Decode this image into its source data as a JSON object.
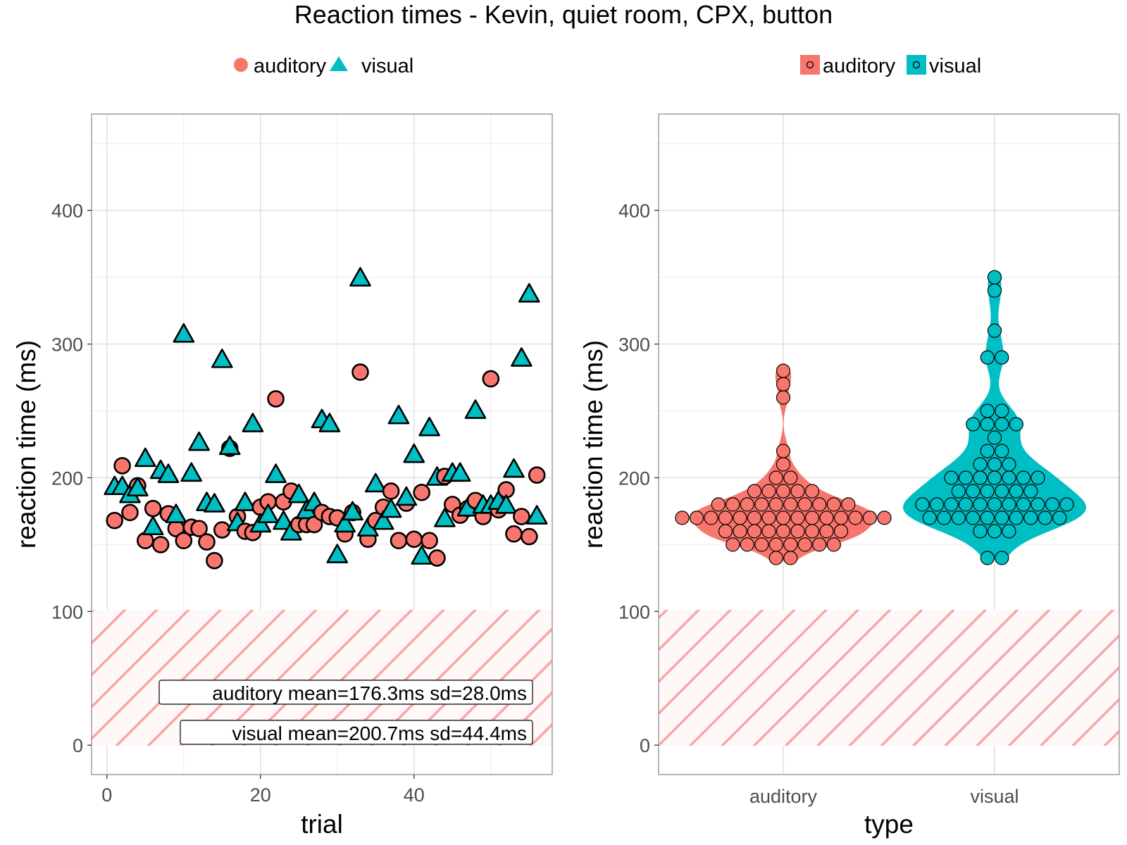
{
  "title": "Reaction times - Kevin, quiet room, CPX, button",
  "colors": {
    "auditory": "#F8766D",
    "visual": "#00BFC4",
    "hatch": "#F8766D"
  },
  "chart_data": [
    {
      "type": "scatter",
      "xlabel": "trial",
      "ylabel": "reaction time (ms)",
      "xlim": [
        -2,
        58
      ],
      "ylim": [
        -22,
        472
      ],
      "x_ticks": [
        0,
        20,
        40
      ],
      "y_ticks": [
        0,
        100,
        200,
        300,
        400
      ],
      "grid": true,
      "legend_position": "top",
      "legend": [
        {
          "label": "auditory",
          "shape": "circle"
        },
        {
          "label": "visual",
          "shape": "triangle"
        }
      ],
      "shaded_region": {
        "y_from": 0,
        "y_to": 100,
        "pattern": "diagonal-hatch"
      },
      "annotations": [
        "auditory mean=176.3ms sd=28.0ms",
        "visual mean=200.7ms sd=44.4ms"
      ],
      "series": [
        {
          "name": "auditory",
          "shape": "circle",
          "points": [
            [
              1,
              168
            ],
            [
              2,
              209
            ],
            [
              3,
              174
            ],
            [
              4,
              194
            ],
            [
              5,
              153
            ],
            [
              6,
              177
            ],
            [
              7,
              150
            ],
            [
              8,
              173
            ],
            [
              9,
              162
            ],
            [
              10,
              153
            ],
            [
              11,
              163
            ],
            [
              12,
              162
            ],
            [
              13,
              152
            ],
            [
              14,
              138
            ],
            [
              15,
              161
            ],
            [
              16,
              222
            ],
            [
              17,
              171
            ],
            [
              18,
              160
            ],
            [
              19,
              159
            ],
            [
              20,
              178
            ],
            [
              21,
              182
            ],
            [
              22,
              259
            ],
            [
              23,
              182
            ],
            [
              24,
              190
            ],
            [
              25,
              165
            ],
            [
              26,
              165
            ],
            [
              27,
              165
            ],
            [
              28,
              174
            ],
            [
              29,
              171
            ],
            [
              30,
              170
            ],
            [
              31,
              158
            ],
            [
              32,
              174
            ],
            [
              33,
              279
            ],
            [
              34,
              154
            ],
            [
              35,
              168
            ],
            [
              36,
              178
            ],
            [
              37,
              190
            ],
            [
              38,
              153
            ],
            [
              39,
              181
            ],
            [
              40,
              154
            ],
            [
              41,
              189
            ],
            [
              42,
              153
            ],
            [
              43,
              140
            ],
            [
              44,
              201
            ],
            [
              45,
              180
            ],
            [
              46,
              172
            ],
            [
              47,
              177
            ],
            [
              48,
              183
            ],
            [
              49,
              171
            ],
            [
              50,
              274
            ],
            [
              51,
              176
            ],
            [
              52,
              191
            ],
            [
              53,
              158
            ],
            [
              54,
              171
            ],
            [
              55,
              156
            ],
            [
              56,
              202
            ]
          ]
        },
        {
          "name": "visual",
          "shape": "triangle",
          "points": [
            [
              1,
              193
            ],
            [
              2,
              193
            ],
            [
              3,
              187
            ],
            [
              4,
              192
            ],
            [
              5,
              214
            ],
            [
              6,
              163
            ],
            [
              7,
              205
            ],
            [
              8,
              202
            ],
            [
              9,
              172
            ],
            [
              10,
              307
            ],
            [
              11,
              203
            ],
            [
              12,
              226
            ],
            [
              13,
              181
            ],
            [
              14,
              180
            ],
            [
              15,
              288
            ],
            [
              16,
              223
            ],
            [
              17,
              166
            ],
            [
              18,
              181
            ],
            [
              19,
              240
            ],
            [
              20,
              165
            ],
            [
              21,
              172
            ],
            [
              22,
              202
            ],
            [
              23,
              167
            ],
            [
              24,
              159
            ],
            [
              25,
              187
            ],
            [
              26,
              175
            ],
            [
              27,
              181
            ],
            [
              28,
              243
            ],
            [
              29,
              240
            ],
            [
              30,
              142
            ],
            [
              31,
              165
            ],
            [
              32,
              174
            ],
            [
              33,
              349
            ],
            [
              34,
              162
            ],
            [
              35,
              195
            ],
            [
              36,
              167
            ],
            [
              37,
              176
            ],
            [
              38,
              246
            ],
            [
              39,
              185
            ],
            [
              40,
              217
            ],
            [
              41,
              141
            ],
            [
              42,
              237
            ],
            [
              43,
              200
            ],
            [
              44,
              169
            ],
            [
              45,
              203
            ],
            [
              46,
              203
            ],
            [
              47,
              177
            ],
            [
              48,
              250
            ],
            [
              49,
              179
            ],
            [
              50,
              179
            ],
            [
              51,
              182
            ],
            [
              52,
              179
            ],
            [
              53,
              206
            ],
            [
              54,
              289
            ],
            [
              55,
              337
            ],
            [
              56,
              171
            ]
          ]
        }
      ]
    },
    {
      "type": "violin",
      "xlabel": "type",
      "ylabel": "reaction time (ms)",
      "categories": [
        "auditory",
        "visual"
      ],
      "ylim": [
        -22,
        472
      ],
      "y_ticks": [
        0,
        100,
        200,
        300,
        400
      ],
      "grid": true,
      "legend_position": "top",
      "legend": [
        {
          "label": "auditory"
        },
        {
          "label": "visual"
        }
      ],
      "shaded_region": {
        "y_from": 0,
        "y_to": 100,
        "pattern": "diagonal-hatch"
      },
      "overlay": "dotplot",
      "series": [
        {
          "name": "auditory",
          "values": [
            168,
            209,
            174,
            194,
            153,
            177,
            150,
            173,
            162,
            153,
            163,
            162,
            152,
            138,
            161,
            222,
            171,
            160,
            159,
            178,
            182,
            259,
            182,
            190,
            165,
            165,
            165,
            174,
            171,
            170,
            158,
            174,
            279,
            154,
            168,
            178,
            190,
            153,
            181,
            154,
            189,
            153,
            140,
            201,
            180,
            172,
            177,
            183,
            171,
            274,
            176,
            191,
            158,
            171,
            156,
            202
          ]
        },
        {
          "name": "visual",
          "values": [
            193,
            193,
            187,
            192,
            214,
            163,
            205,
            202,
            172,
            307,
            203,
            226,
            181,
            180,
            288,
            223,
            166,
            181,
            240,
            165,
            172,
            202,
            167,
            159,
            187,
            175,
            181,
            243,
            240,
            142,
            165,
            174,
            349,
            162,
            195,
            167,
            176,
            246,
            185,
            217,
            141,
            237,
            200,
            169,
            203,
            203,
            177,
            250,
            179,
            179,
            182,
            179,
            206,
            289,
            337,
            171
          ]
        }
      ]
    }
  ]
}
